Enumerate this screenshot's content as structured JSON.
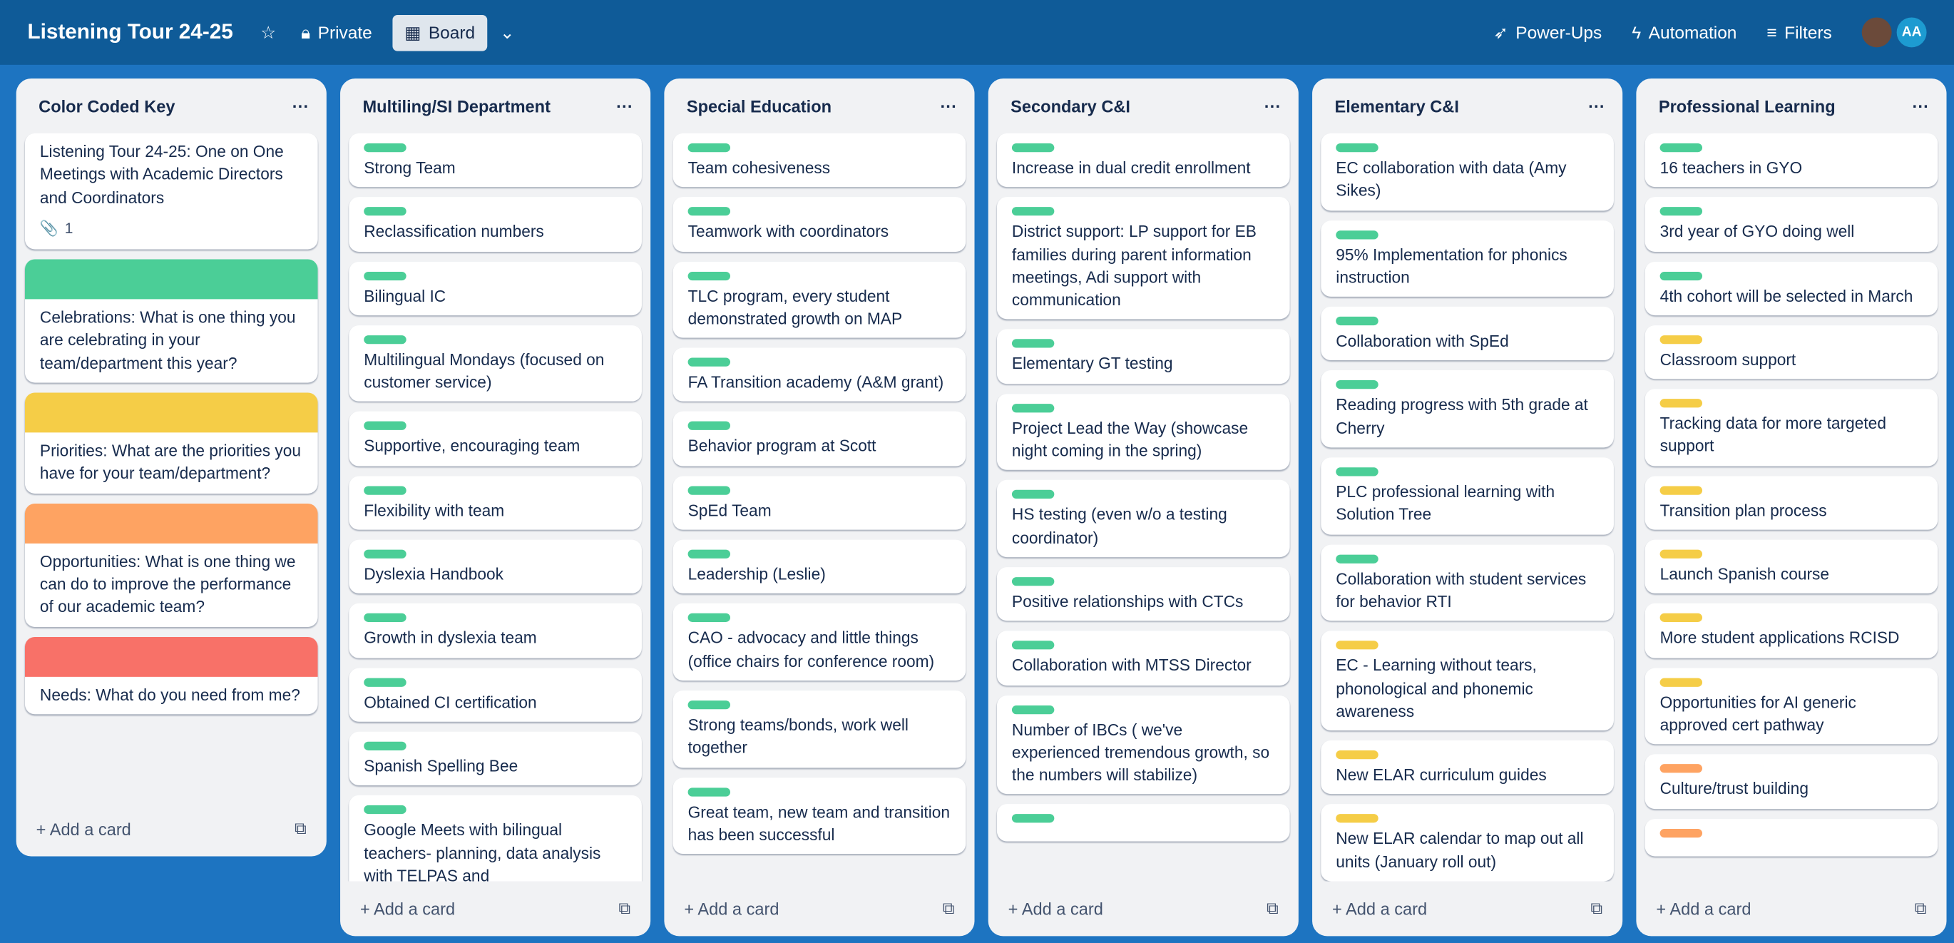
{
  "header": {
    "title": "Listening Tour 24-25",
    "visibility": "Private",
    "view": "Board",
    "actions": [
      "Power-Ups",
      "Automation",
      "Filters"
    ],
    "avatar": "AA"
  },
  "lists": [
    {
      "title": "Color Coded Key",
      "add": "Add a card",
      "cards": [
        {
          "text": "Listening Tour 24-25: One on One Meetings with Academic Directors and Coordinators",
          "attachments": 1
        },
        {
          "cover": "green",
          "text": "Celebrations: What is one thing you are celebrating in your team/department this year?"
        },
        {
          "cover": "yellow",
          "text": "Priorities: What are the priorities you have for your team/department?"
        },
        {
          "cover": "orange",
          "text": "Opportunities: What is one thing we can do to improve the performance of our academic team?"
        },
        {
          "cover": "red",
          "text": "Needs: What do you need from me?"
        }
      ]
    },
    {
      "title": "Multiling/SI Department",
      "add": "Add a card",
      "cards": [
        {
          "label": "green",
          "text": "Strong Team"
        },
        {
          "label": "green",
          "text": "Reclassification numbers"
        },
        {
          "label": "green",
          "text": "Bilingual IC"
        },
        {
          "label": "green",
          "text": "Multilingual Mondays (focused on customer service)"
        },
        {
          "label": "green",
          "text": "Supportive, encouraging team"
        },
        {
          "label": "green",
          "text": "Flexibility with team"
        },
        {
          "label": "green",
          "text": "Dyslexia Handbook"
        },
        {
          "label": "green",
          "text": "Growth in dyslexia team"
        },
        {
          "label": "green",
          "text": "Obtained CI certification"
        },
        {
          "label": "green",
          "text": "Spanish Spelling Bee"
        },
        {
          "label": "green",
          "text": "Google Meets with bilingual teachers- planning, data analysis with TELPAS and"
        }
      ]
    },
    {
      "title": "Special Education",
      "add": "Add a card",
      "cards": [
        {
          "label": "green",
          "text": "Team cohesiveness"
        },
        {
          "label": "green",
          "text": "Teamwork with coordinators"
        },
        {
          "label": "green",
          "text": "TLC program, every student demonstrated growth on MAP"
        },
        {
          "label": "green",
          "text": "FA Transition academy (A&M grant)"
        },
        {
          "label": "green",
          "text": "Behavior program at Scott"
        },
        {
          "label": "green",
          "text": "SpEd Team"
        },
        {
          "label": "green",
          "text": "Leadership (Leslie)"
        },
        {
          "label": "green",
          "text": "CAO - advocacy and little things (office chairs for conference room)"
        },
        {
          "label": "green",
          "text": "Strong teams/bonds, work well together"
        },
        {
          "label": "green",
          "text": "Great team, new team and transition has been successful"
        }
      ]
    },
    {
      "title": "Secondary C&I",
      "add": "Add a card",
      "cards": [
        {
          "label": "green",
          "text": "Increase in dual credit enrollment"
        },
        {
          "label": "green",
          "text": "District support: LP support for EB families during parent information meetings, Adi support with communication"
        },
        {
          "label": "green",
          "text": "Elementary GT testing"
        },
        {
          "label": "green",
          "text": "Project Lead the Way (showcase night coming in the spring)"
        },
        {
          "label": "green",
          "text": "HS testing (even w/o a testing coordinator)"
        },
        {
          "label": "green",
          "text": "Positive relationships with CTCs"
        },
        {
          "label": "green",
          "text": "Collaboration with MTSS Director"
        },
        {
          "label": "green",
          "text": "Number of IBCs ( we've experienced tremendous growth, so the numbers will stabilize)"
        },
        {
          "label": "green"
        }
      ]
    },
    {
      "title": "Elementary C&I",
      "add": "Add a card",
      "cards": [
        {
          "label": "green",
          "text": "EC collaboration with data (Amy Sikes)"
        },
        {
          "label": "green",
          "text": "95% Implementation for phonics instruction"
        },
        {
          "label": "green",
          "text": "Collaboration with SpEd"
        },
        {
          "label": "green",
          "text": "Reading progress with 5th grade at Cherry"
        },
        {
          "label": "green",
          "text": "PLC professional learning with Solution Tree"
        },
        {
          "label": "green",
          "text": "Collaboration with student services for behavior RTI"
        },
        {
          "label": "yellow",
          "text": "EC - Learning without tears, phonological and phonemic awareness"
        },
        {
          "label": "yellow",
          "text": "New ELAR curriculum guides"
        },
        {
          "label": "yellow",
          "text": "New ELAR calendar to map out all units (January roll out)"
        }
      ]
    },
    {
      "title": "Professional Learning",
      "add": "Add a card",
      "cards": [
        {
          "label": "green",
          "text": "16 teachers in GYO"
        },
        {
          "label": "green",
          "text": "3rd year of GYO doing well"
        },
        {
          "label": "green",
          "text": "4th cohort will be selected in March"
        },
        {
          "label": "yellow",
          "text": "Classroom support"
        },
        {
          "label": "yellow",
          "text": "Tracking data for more targeted support"
        },
        {
          "label": "yellow",
          "text": "Transition plan process"
        },
        {
          "label": "yellow",
          "text": "Launch Spanish course"
        },
        {
          "label": "yellow",
          "text": "More student applications RCISD"
        },
        {
          "label": "yellow",
          "text": "Opportunities for AI generic approved cert pathway"
        },
        {
          "label": "orange",
          "text": "Culture/trust building"
        },
        {
          "label": "orange"
        }
      ]
    }
  ]
}
